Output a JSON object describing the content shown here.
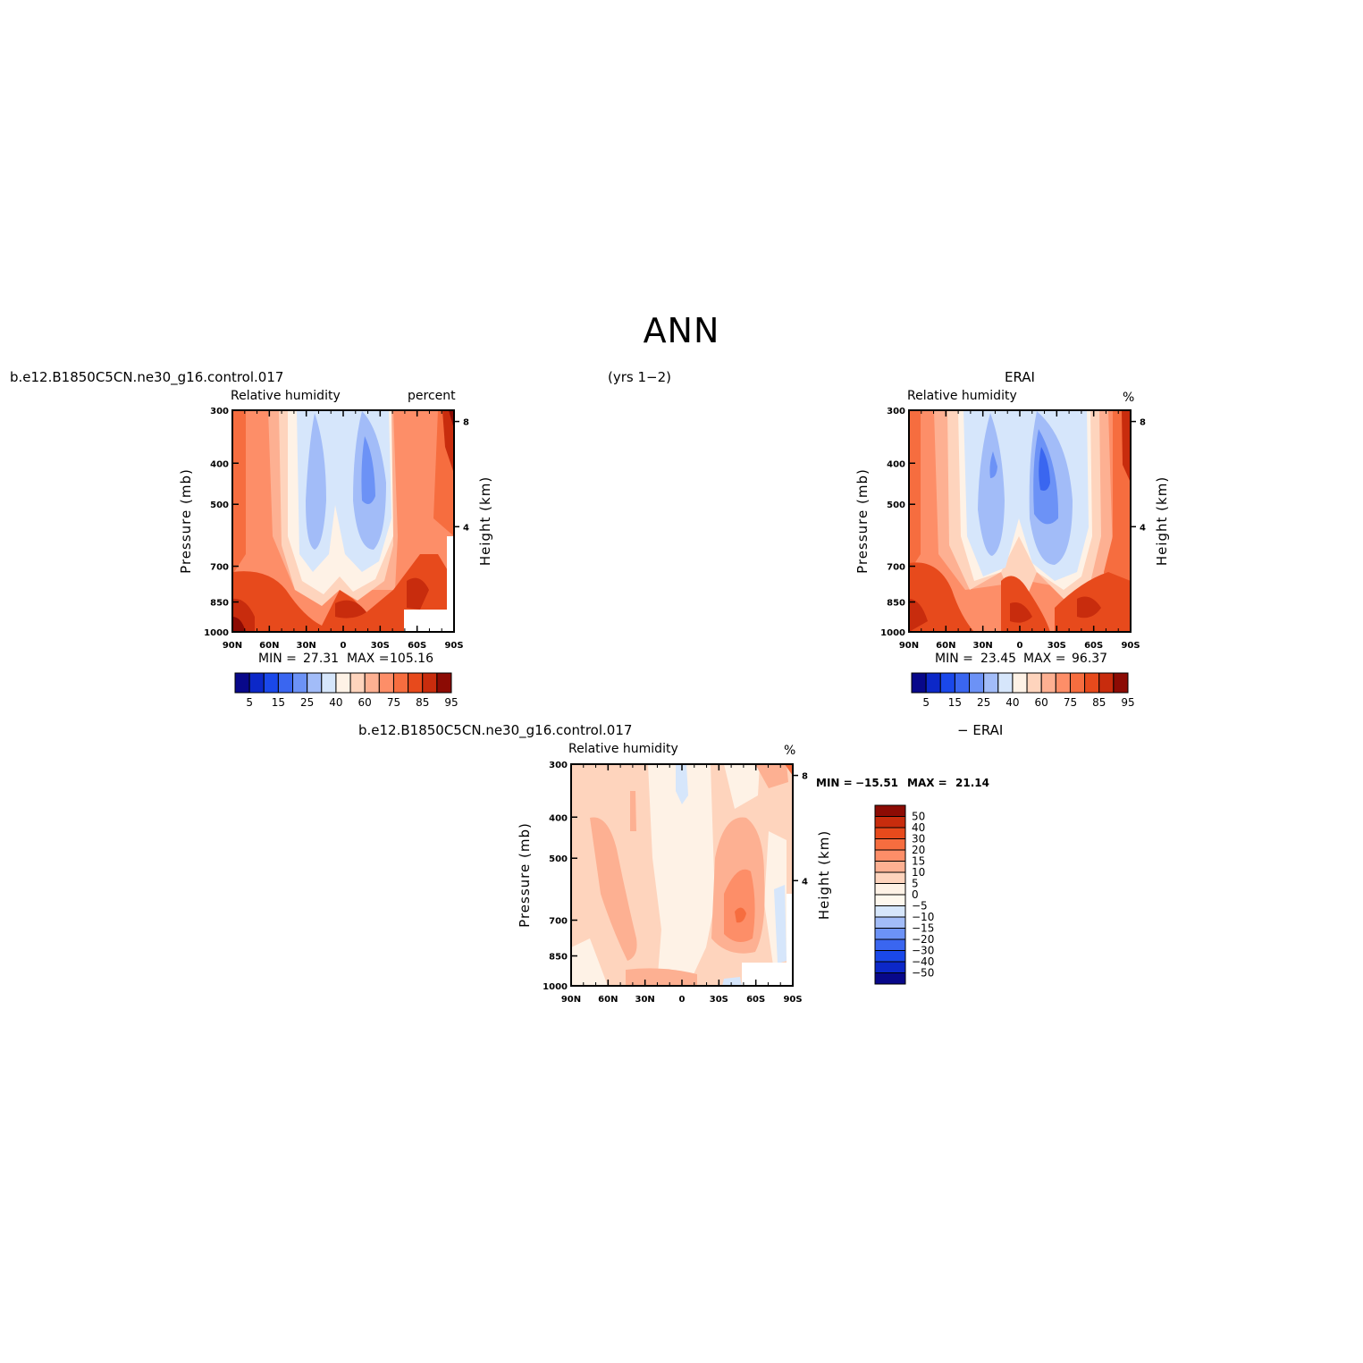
{
  "figure": {
    "title": "ANN",
    "subtitle": "(yrs 1−2)"
  },
  "palettes": {
    "rh": [
      "#08088a",
      "#0c28c8",
      "#1a48ea",
      "#3a66f0",
      "#6c92f6",
      "#a2bcf8",
      "#d6e6fb",
      "#fef2e6",
      "#fed4bd",
      "#fdb092",
      "#fd8e68",
      "#f66d3f",
      "#e74a1c",
      "#c82c0d",
      "#8c0b04"
    ],
    "diff": [
      "#08088a",
      "#0c28c8",
      "#1a48ea",
      "#3a66f0",
      "#6c92f6",
      "#a2bcf8",
      "#d6e6fb",
      "#fef8ee",
      "#fef2e6",
      "#fed4bd",
      "#fdb092",
      "#fd8e68",
      "#f66d3f",
      "#e74a1c",
      "#c82c0d",
      "#8c0b04"
    ]
  },
  "chart_data": [
    {
      "id": "model",
      "type": "heatmap",
      "case_name": "b.e12.B1850C5CN.ne30_g16.control.017",
      "left_string": "Relative humidity",
      "right_string": "percent",
      "ylabel": "Pressure (mb)",
      "y2label": "Height (km)",
      "x_ticks": [
        "90N",
        "60N",
        "30N",
        "0",
        "30S",
        "60S",
        "90S"
      ],
      "y_ticks": [
        "300",
        "400",
        "500",
        "700",
        "850",
        "1000"
      ],
      "y2_ticks": [
        "8",
        "4"
      ],
      "min_label": "MIN =",
      "min_value": "27.31",
      "max_label": "MAX =",
      "max_value": "105.16",
      "colorbar_labels": [
        "5",
        "15",
        "25",
        "40",
        "60",
        "75",
        "85",
        "95"
      ]
    },
    {
      "id": "obs",
      "type": "heatmap",
      "case_name": "ERAI",
      "left_string": "Relative humidity",
      "right_string": "%",
      "ylabel": "Pressure (mb)",
      "y2label": "Height (km)",
      "x_ticks": [
        "90N",
        "60N",
        "30N",
        "0",
        "30S",
        "60S",
        "90S"
      ],
      "y_ticks": [
        "300",
        "400",
        "500",
        "700",
        "850",
        "1000"
      ],
      "y2_ticks": [
        "8",
        "4"
      ],
      "min_label": "MIN =",
      "min_value": "23.45",
      "max_label": "MAX =",
      "max_value": "96.37",
      "colorbar_labels": [
        "5",
        "15",
        "25",
        "40",
        "60",
        "75",
        "85",
        "95"
      ]
    },
    {
      "id": "diff",
      "type": "heatmap",
      "case_name": "b.e12.B1850C5CN.ne30_g16.control.017",
      "case_name_right": "− ERAI",
      "left_string": "Relative humidity",
      "right_string": "%",
      "ylabel": "Pressure (mb)",
      "y2label": "Height (km)",
      "x_ticks": [
        "90N",
        "60N",
        "30N",
        "0",
        "30S",
        "60S",
        "90S"
      ],
      "y_ticks": [
        "300",
        "400",
        "500",
        "700",
        "850",
        "1000"
      ],
      "y2_ticks": [
        "8",
        "4"
      ],
      "min_label": "MIN =",
      "min_value": "−15.51",
      "max_label": "MAX =",
      "max_value": "21.14",
      "colorbar_labels": [
        "50",
        "40",
        "30",
        "20",
        "15",
        "10",
        "5",
        "0",
        "−5",
        "−10",
        "−15",
        "−20",
        "−30",
        "−40",
        "−50"
      ]
    }
  ]
}
